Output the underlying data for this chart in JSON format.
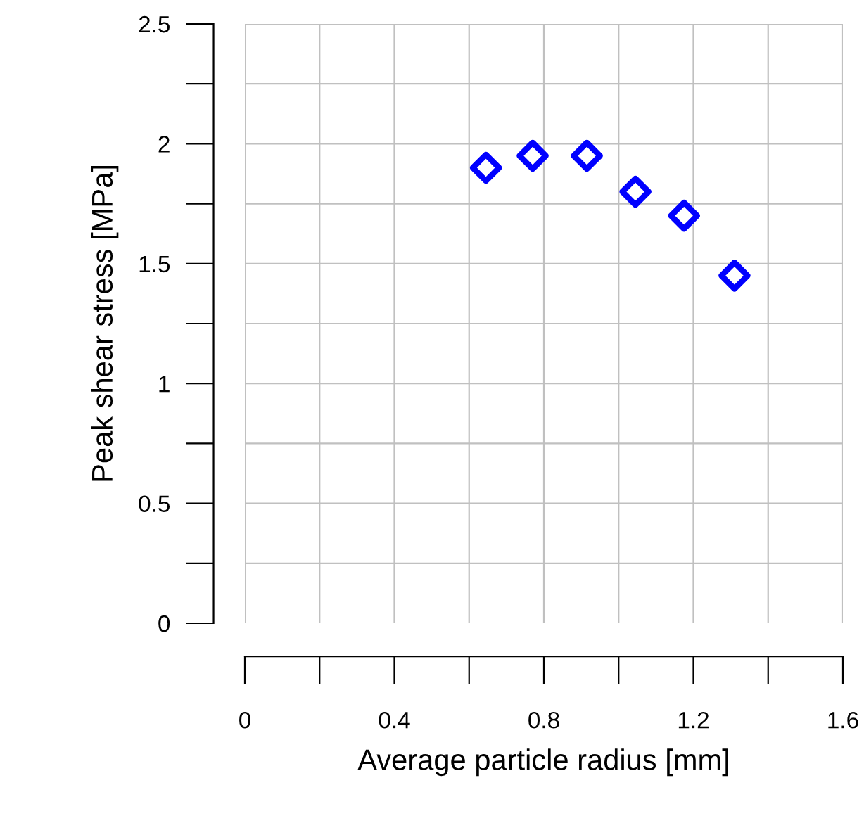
{
  "chart_data": {
    "type": "scatter",
    "xlabel": "Average particle radius [mm]",
    "ylabel": "Peak shear stress [MPa]",
    "x": [
      0.645,
      0.77,
      0.915,
      1.045,
      1.175,
      1.31
    ],
    "series": [
      {
        "color": "#0000ff",
        "values": [
          1.9,
          1.95,
          1.95,
          1.8,
          1.7,
          1.45
        ]
      }
    ],
    "marker": "diamond",
    "grid": true,
    "xlim": [
      0,
      1.6
    ],
    "ylim": [
      0,
      2.5
    ],
    "xticks": [
      0,
      {
        "value": 0.2,
        "label": null
      },
      0.4,
      {
        "value": 0.6,
        "label": null
      },
      0.8,
      {
        "value": 1.0,
        "label": null
      },
      1.2,
      {
        "value": 1.4,
        "label": null
      },
      1.6
    ],
    "yticks": [
      0,
      {
        "value": 0.25,
        "label": null
      },
      0.5,
      {
        "value": 0.75,
        "label": null
      },
      1,
      {
        "value": 1.25,
        "label": null
      },
      1.5,
      {
        "value": 1.75,
        "label": null
      },
      2,
      {
        "value": 2.25,
        "label": null
      },
      2.5
    ]
  }
}
